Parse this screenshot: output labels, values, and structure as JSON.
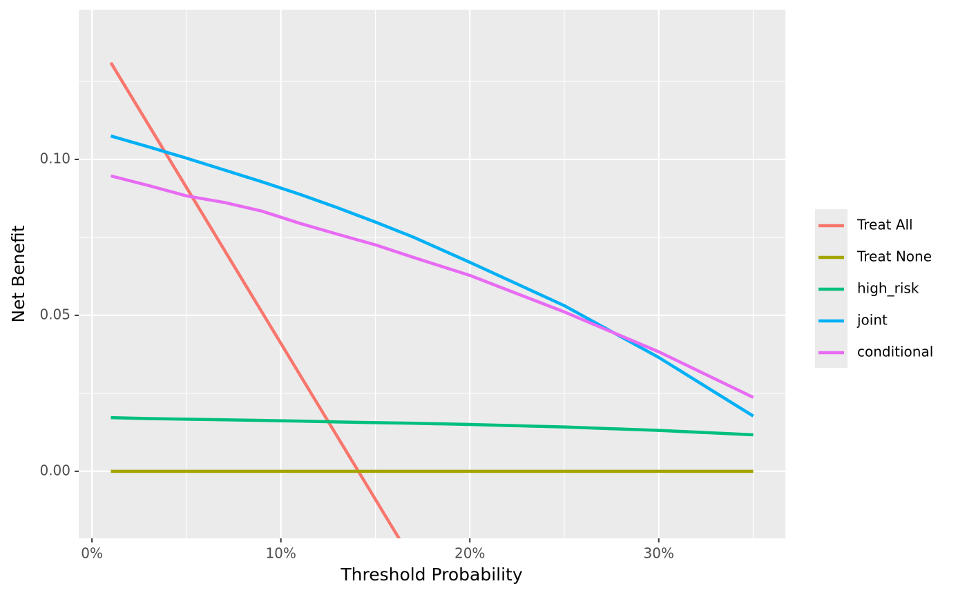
{
  "chart_data": {
    "type": "line",
    "x_label": "Threshold Probability",
    "y_label": "Net Benefit",
    "x": [
      1,
      3,
      5,
      7,
      9,
      11,
      13,
      15,
      17,
      20,
      25,
      30,
      35
    ],
    "series": [
      {
        "name": "Treat All",
        "color": "#F8766D",
        "values": [
          0.131,
          0.111,
          0.091,
          0.071,
          0.051,
          0.031,
          0.011,
          -0.009,
          -0.029,
          null,
          null,
          null,
          null
        ]
      },
      {
        "name": "Treat None",
        "color": "#A3A500",
        "values": [
          0,
          0,
          0,
          0,
          0,
          0,
          0,
          0,
          0,
          0,
          0,
          0,
          0
        ]
      },
      {
        "name": "high_risk",
        "color": "#00BF7D",
        "values": [
          0.0172,
          0.0169,
          0.0167,
          0.0165,
          0.0163,
          0.0161,
          0.0158,
          0.0156,
          0.0154,
          0.015,
          0.0142,
          0.0131,
          0.0117
        ]
      },
      {
        "name": "joint",
        "color": "#00B0F6",
        "values": [
          0.1075,
          0.104,
          0.1004,
          0.0966,
          0.0928,
          0.0888,
          0.0845,
          0.0799,
          0.0751,
          0.067,
          0.0531,
          0.0365,
          0.0177
        ]
      },
      {
        "name": "conditional",
        "color": "#E76BF3",
        "values": [
          0.0947,
          0.0916,
          0.0883,
          0.0862,
          0.0834,
          0.0795,
          0.076,
          0.0726,
          0.0686,
          0.0628,
          0.0511,
          0.0383,
          0.0237
        ]
      }
    ],
    "xlim": [
      -0.7,
      36.7
    ],
    "ylim": [
      -0.0215,
      0.148
    ],
    "xticks": [
      {
        "value": 0,
        "label": "0%"
      },
      {
        "value": 10,
        "label": "10%"
      },
      {
        "value": 20,
        "label": "20%"
      },
      {
        "value": 30,
        "label": "30%"
      }
    ],
    "yticks": [
      {
        "value": 0,
        "label": "0.00"
      },
      {
        "value": 0.05,
        "label": "0.05"
      },
      {
        "value": 0.1,
        "label": "0.10"
      }
    ],
    "x_minor_grid": [
      5,
      15,
      25,
      35
    ],
    "y_minor_grid": [
      0.025,
      0.075,
      0.125
    ],
    "grid": true,
    "legend": "right"
  }
}
